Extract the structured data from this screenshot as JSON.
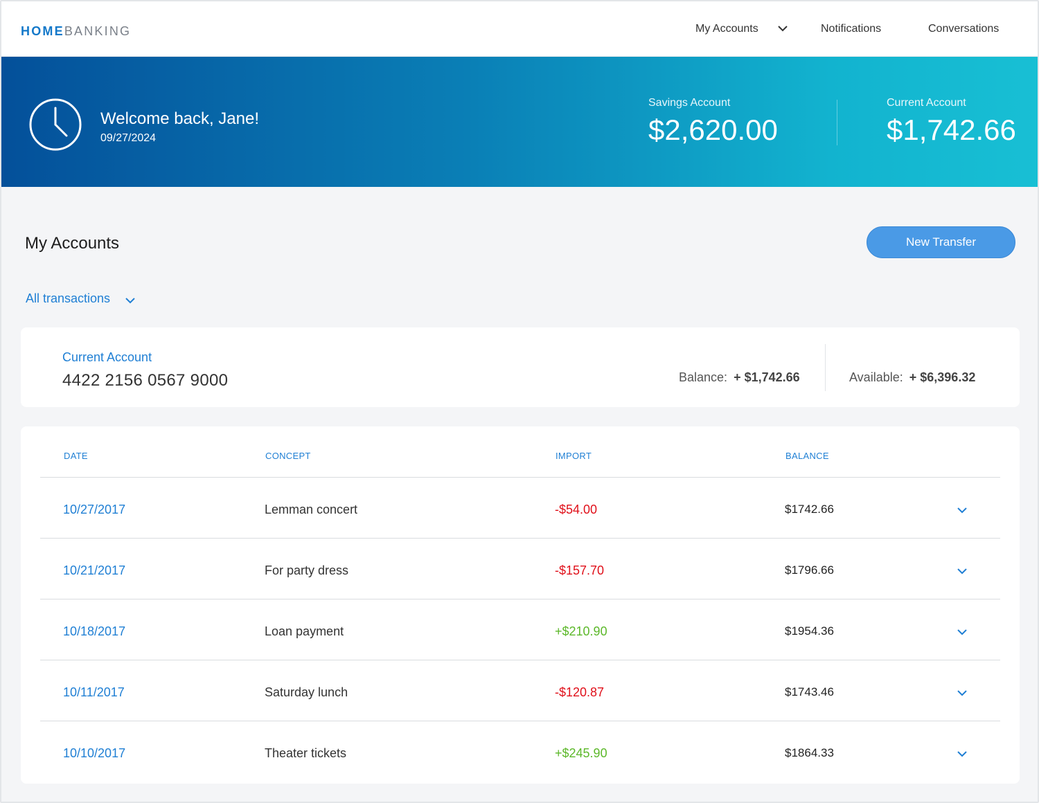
{
  "brand": {
    "part1": "HOME",
    "part2": "BANKING"
  },
  "nav": {
    "items": [
      "My Accounts",
      "Notifications",
      "Conversations"
    ],
    "dropdown_icon": "chevron-down-icon"
  },
  "hero": {
    "welcome": "Welcome back, Jane!",
    "date": "09/27/2024",
    "savings": {
      "label": "Savings Account",
      "amount": "$2,620.00"
    },
    "current": {
      "label": "Current Account",
      "amount": "$1,742.66"
    },
    "icon": "clock-icon"
  },
  "main": {
    "title": "My Accounts",
    "new_transfer_label": "New Transfer",
    "filter_label": "All transactions"
  },
  "account": {
    "label": "Current Account",
    "number": "4422 2156 0567 9000",
    "balance_label": "Balance:",
    "balance_value": "+  $1,742.66",
    "available_label": "Available:",
    "available_value": "+  $6,396.32"
  },
  "table": {
    "headers": {
      "date": "DATE",
      "concept": "CONCEPT",
      "import": "IMPORT",
      "balance": "BALANCE"
    },
    "rows": [
      {
        "date": "10/27/2017",
        "concept": "Lemman concert",
        "import": "-$54.00",
        "balance": "$1742.66",
        "type": "neg"
      },
      {
        "date": "10/21/2017",
        "concept": "For party dress",
        "import": "-$157.70",
        "balance": "$1796.66",
        "type": "neg"
      },
      {
        "date": "10/18/2017",
        "concept": "Loan payment",
        "import": "+$210.90",
        "balance": "$1954.36",
        "type": "pos"
      },
      {
        "date": "10/11/2017",
        "concept": "Saturday lunch",
        "import": "-$120.87",
        "balance": "$1743.46",
        "type": "neg"
      },
      {
        "date": "10/10/2017",
        "concept": "Theater tickets",
        "import": "+$245.90",
        "balance": "$1864.33",
        "type": "pos"
      }
    ]
  },
  "colors": {
    "accent": "#1f7fd4",
    "button": "#4a9ae6",
    "negative": "#e0101a",
    "positive": "#5cb82a",
    "hero_start": "#04509a",
    "hero_end": "#18bfd4"
  }
}
